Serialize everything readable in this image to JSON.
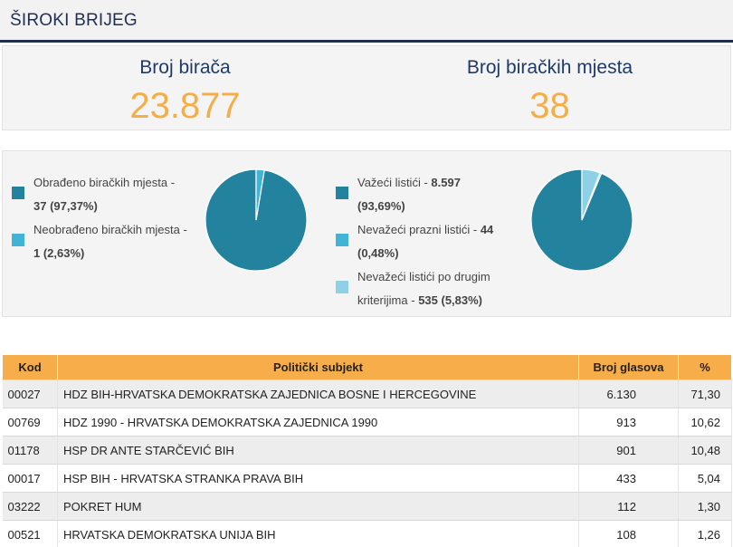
{
  "header": {
    "title": "ŠIROKI BRIJEG"
  },
  "stats": {
    "voters_label": "Broj birača",
    "voters_value": "23.877",
    "stations_label": "Broj biračkih mjesta",
    "stations_value": "38"
  },
  "colors": {
    "dark_teal": "#23829d",
    "mid_blue": "#42b3d5",
    "light_blue": "#8ed1e7",
    "accent_orange": "#f3ae48",
    "navy": "#1f2e52"
  },
  "chart_data": [
    {
      "type": "pie",
      "legend": [
        {
          "text": "Obrađeno biračkih mjesta -",
          "bold": "37 (97,37%)"
        },
        {
          "text": "Neobrađeno biračkih mjesta -",
          "bold": "1 (2,63%)"
        }
      ],
      "values": [
        97.37,
        2.63
      ],
      "colors": [
        "#23829d",
        "#42b3d5"
      ]
    },
    {
      "type": "pie",
      "legend": [
        {
          "text": "Važeći listići -",
          "bold": "8.597",
          "text2": "",
          "bold2": "(93,69%)"
        },
        {
          "text": "Nevažeći prazni listići -",
          "bold": "44",
          "text2": "",
          "bold2": "(0,48%)"
        },
        {
          "text": "Nevažeći listići po drugim",
          "bold": "",
          "text2": "kriterijima -",
          "bold2": "535 (5,83%)"
        }
      ],
      "values": [
        93.69,
        0.48,
        5.83
      ],
      "colors": [
        "#23829d",
        "#42b3d5",
        "#8ed1e7"
      ]
    }
  ],
  "table": {
    "headers": {
      "code": "Kod",
      "subject": "Politički subjekt",
      "votes": "Broj glasova",
      "pct": "%"
    },
    "rows": [
      {
        "code": "00027",
        "subject": "HDZ BIH-HRVATSKA DEMOKRATSKA ZAJEDNICA BOSNE I HERCEGOVINE",
        "votes": "6.130",
        "pct": "71,30"
      },
      {
        "code": "00769",
        "subject": "HDZ 1990 - HRVATSKA DEMOKRATSKA ZAJEDNICA 1990",
        "votes": "913",
        "pct": "10,62"
      },
      {
        "code": "01178",
        "subject": "HSP DR ANTE STARČEVIĆ BIH",
        "votes": "901",
        "pct": "10,48"
      },
      {
        "code": "00017",
        "subject": "HSP BIH - HRVATSKA STRANKA PRAVA BIH",
        "votes": "433",
        "pct": "5,04"
      },
      {
        "code": "03222",
        "subject": "POKRET HUM",
        "votes": "112",
        "pct": "1,30"
      },
      {
        "code": "00521",
        "subject": "HRVATSKA DEMOKRATSKA UNIJA BIH",
        "votes": "108",
        "pct": "1,26"
      }
    ]
  }
}
